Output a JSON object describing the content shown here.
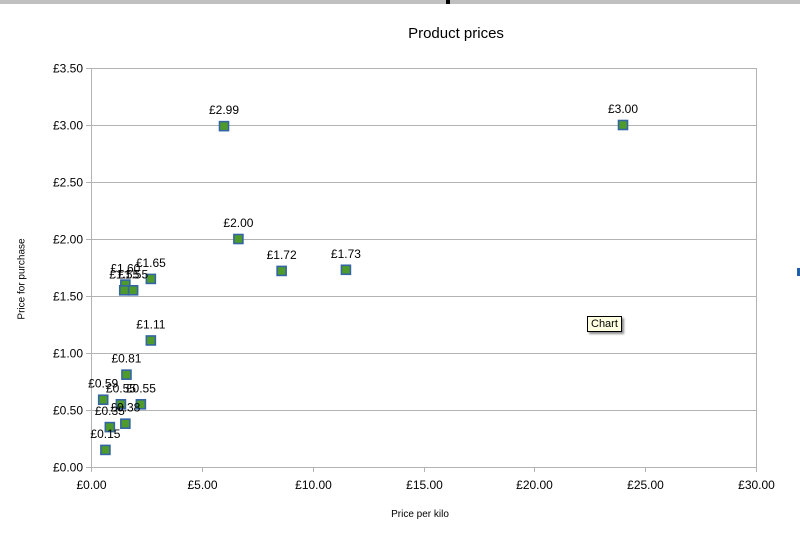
{
  "window": {
    "tooltip": "Chart"
  },
  "chart_data": {
    "type": "scatter",
    "title": "Product prices",
    "xlabel": "Price per kilo",
    "ylabel": "Price for purchase",
    "xlim": [
      0,
      30
    ],
    "ylim": [
      0,
      3.5
    ],
    "x_ticks": [
      "£0.00",
      "£5.00",
      "£10.00",
      "£15.00",
      "£20.00",
      "£25.00",
      "£30.00"
    ],
    "y_ticks": [
      "£0.00",
      "£0.50",
      "£1.00",
      "£1.50",
      "£2.00",
      "£2.50",
      "£3.00",
      "£3.50"
    ],
    "grid": "horizontal",
    "legend": "none",
    "marker_fill": "#4e9a2a",
    "marker_edge": "#3465a4",
    "points": [
      {
        "x": 6.0,
        "y": 2.99,
        "label": "£2.99"
      },
      {
        "x": 24.0,
        "y": 3.0,
        "label": "£3.00"
      },
      {
        "x": 6.65,
        "y": 2.0,
        "label": "£2.00"
      },
      {
        "x": 8.6,
        "y": 1.72,
        "label": "£1.72"
      },
      {
        "x": 11.5,
        "y": 1.73,
        "label": "£1.73"
      },
      {
        "x": 2.7,
        "y": 1.65,
        "label": "£1.65"
      },
      {
        "x": 1.55,
        "y": 1.6,
        "label": "£1.60"
      },
      {
        "x": 1.5,
        "y": 1.55,
        "label": "£1.55"
      },
      {
        "x": 1.9,
        "y": 1.55,
        "label": "£1.55"
      },
      {
        "x": 2.7,
        "y": 1.11,
        "label": "£1.11"
      },
      {
        "x": 1.6,
        "y": 0.81,
        "label": "£0.81"
      },
      {
        "x": 0.55,
        "y": 0.59,
        "label": "£0.59"
      },
      {
        "x": 1.35,
        "y": 0.55,
        "label": "£0.55"
      },
      {
        "x": 2.25,
        "y": 0.55,
        "label": "£0.55"
      },
      {
        "x": 0.85,
        "y": 0.35,
        "label": "£0.35"
      },
      {
        "x": 1.55,
        "y": 0.38,
        "label": "£0.38"
      },
      {
        "x": 0.65,
        "y": 0.15,
        "label": "£0.15"
      }
    ]
  }
}
